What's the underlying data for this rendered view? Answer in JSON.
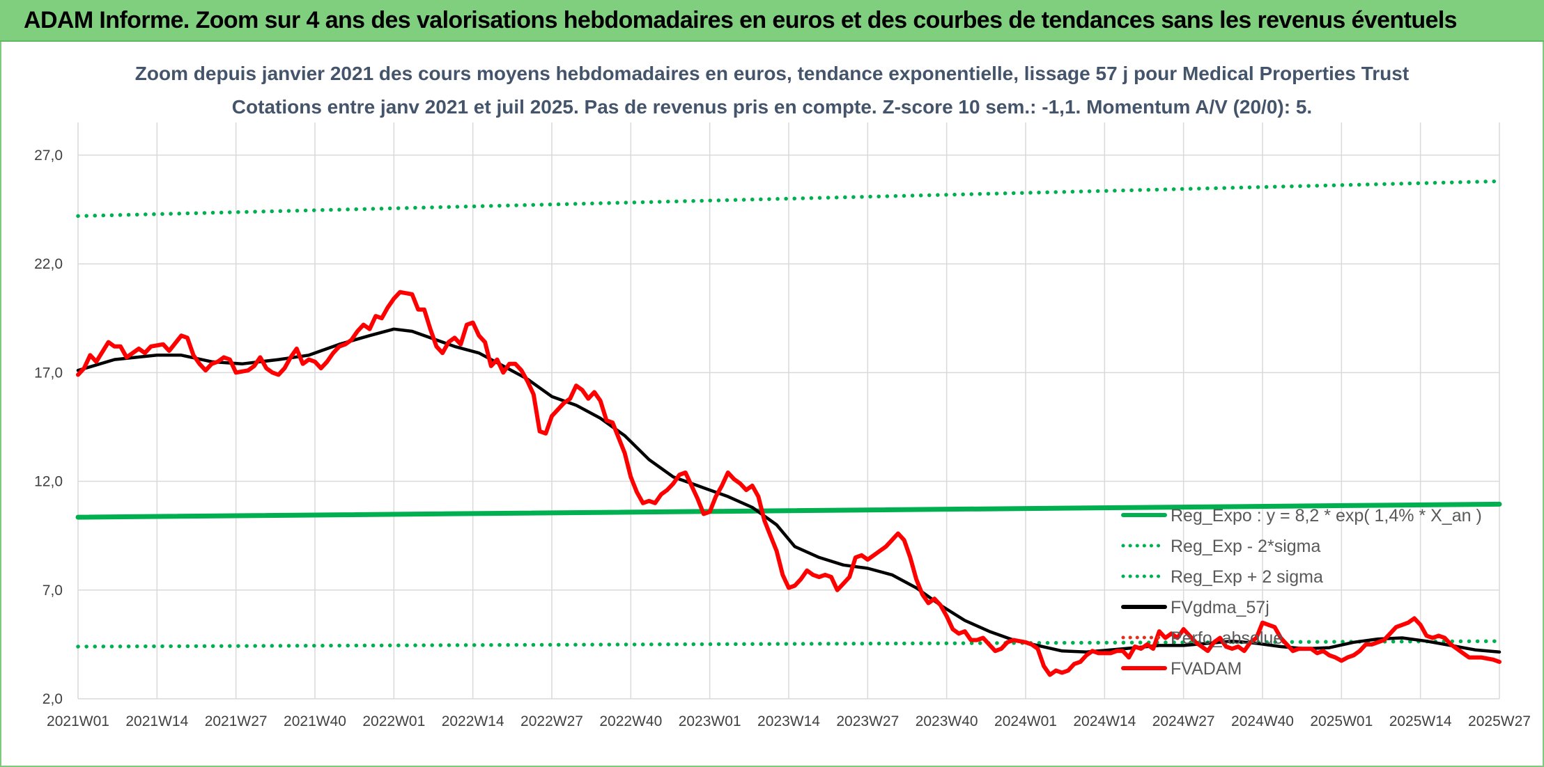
{
  "header": {
    "title": "ADAM Informe. Zoom sur 4 ans des valorisations hebdomadaires en euros et des courbes de tendances sans les revenus éventuels"
  },
  "chart_data": {
    "type": "line",
    "subtitle_line1": "Zoom depuis janvier 2021 des cours moyens hebdomadaires en euros, tendance exponentielle, lissage 57 j pour Medical Properties Trust",
    "subtitle_line2": "Cotations entre janv 2021 et juil 2025. Pas de revenus pris en compte. Z-score 10 sem.: -1,1. Momentum A/V (20/0): 5.",
    "x_tick_labels": [
      "2021W01",
      "2021W14",
      "2021W27",
      "2021W40",
      "2022W01",
      "2022W14",
      "2022W27",
      "2022W40",
      "2023W01",
      "2023W14",
      "2023W27",
      "2023W40",
      "2024W01",
      "2024W14",
      "2024W27",
      "2024W40",
      "2025W01",
      "2025W14",
      "2025W27"
    ],
    "x_range_weeks": [
      0,
      234
    ],
    "y_tick_labels": [
      "2,0",
      "7,0",
      "12,0",
      "17,0",
      "22,0",
      "27,0"
    ],
    "ylim": [
      2,
      28.5
    ],
    "grid": true,
    "legend_position": "right-bottom, inside plot",
    "series": [
      {
        "name": "Reg_Expo : y = 8,2 * exp( 1,4% *  X_an )",
        "color": "#00b050",
        "style": "solid-thick",
        "points": [
          [
            0,
            10.35
          ],
          [
            234,
            10.95
          ]
        ]
      },
      {
        "name": "Reg_Exp - 2*sigma",
        "color": "#00b050",
        "style": "dotted",
        "points": [
          [
            0,
            4.4
          ],
          [
            234,
            4.65
          ]
        ]
      },
      {
        "name": "Reg_Exp + 2 sigma",
        "color": "#00b050",
        "style": "dotted",
        "points": [
          [
            0,
            24.2
          ],
          [
            234,
            25.8
          ]
        ]
      },
      {
        "name": "FVgdma_57j",
        "color": "#000000",
        "style": "solid",
        "points": [
          [
            0,
            17.1
          ],
          [
            6,
            17.6
          ],
          [
            13,
            17.8
          ],
          [
            17,
            17.8
          ],
          [
            22,
            17.5
          ],
          [
            27,
            17.4
          ],
          [
            33,
            17.6
          ],
          [
            38,
            17.8
          ],
          [
            43,
            18.3
          ],
          [
            48,
            18.7
          ],
          [
            52,
            19.0
          ],
          [
            55,
            18.9
          ],
          [
            58,
            18.6
          ],
          [
            62,
            18.2
          ],
          [
            66,
            17.9
          ],
          [
            70,
            17.3
          ],
          [
            74,
            16.7
          ],
          [
            78,
            15.9
          ],
          [
            82,
            15.5
          ],
          [
            86,
            14.9
          ],
          [
            90,
            14.1
          ],
          [
            94,
            13.0
          ],
          [
            98,
            12.2
          ],
          [
            102,
            11.8
          ],
          [
            107,
            11.3
          ],
          [
            111,
            10.8
          ],
          [
            115,
            10.0
          ],
          [
            118,
            9.0
          ],
          [
            122,
            8.5
          ],
          [
            126,
            8.15
          ],
          [
            130,
            8.0
          ],
          [
            134,
            7.7
          ],
          [
            138,
            7.1
          ],
          [
            142,
            6.3
          ],
          [
            146,
            5.6
          ],
          [
            150,
            5.1
          ],
          [
            154,
            4.7
          ],
          [
            158,
            4.45
          ],
          [
            162,
            4.2
          ],
          [
            166,
            4.15
          ],
          [
            170,
            4.25
          ],
          [
            174,
            4.35
          ],
          [
            178,
            4.45
          ],
          [
            182,
            4.45
          ],
          [
            186,
            4.55
          ],
          [
            190,
            4.65
          ],
          [
            194,
            4.55
          ],
          [
            198,
            4.4
          ],
          [
            202,
            4.3
          ],
          [
            206,
            4.35
          ],
          [
            210,
            4.6
          ],
          [
            214,
            4.75
          ],
          [
            218,
            4.8
          ],
          [
            222,
            4.65
          ],
          [
            226,
            4.45
          ],
          [
            230,
            4.25
          ],
          [
            234,
            4.15
          ]
        ]
      },
      {
        "name": "Perfo_absolue",
        "color": "#e03020",
        "style": "dotted",
        "points": []
      },
      {
        "name": "FVADAM",
        "color": "#ff0000",
        "style": "solid-thick",
        "points": [
          [
            0,
            16.9
          ],
          [
            1,
            17.2
          ],
          [
            2,
            17.8
          ],
          [
            3,
            17.5
          ],
          [
            5,
            18.4
          ],
          [
            6,
            18.2
          ],
          [
            7,
            18.2
          ],
          [
            8,
            17.7
          ],
          [
            10,
            18.1
          ],
          [
            11,
            17.9
          ],
          [
            12,
            18.2
          ],
          [
            14,
            18.3
          ],
          [
            15,
            18.0
          ],
          [
            17,
            18.7
          ],
          [
            18,
            18.6
          ],
          [
            19,
            17.8
          ],
          [
            20,
            17.4
          ],
          [
            21,
            17.1
          ],
          [
            22,
            17.4
          ],
          [
            23,
            17.5
          ],
          [
            24,
            17.7
          ],
          [
            25,
            17.6
          ],
          [
            26,
            17.0
          ],
          [
            28,
            17.1
          ],
          [
            29,
            17.3
          ],
          [
            30,
            17.7
          ],
          [
            31,
            17.2
          ],
          [
            32,
            17.0
          ],
          [
            33,
            16.9
          ],
          [
            34,
            17.2
          ],
          [
            35,
            17.7
          ],
          [
            36,
            18.1
          ],
          [
            37,
            17.4
          ],
          [
            38,
            17.6
          ],
          [
            39,
            17.5
          ],
          [
            40,
            17.2
          ],
          [
            41,
            17.5
          ],
          [
            42,
            17.9
          ],
          [
            43,
            18.2
          ],
          [
            44,
            18.3
          ],
          [
            45,
            18.5
          ],
          [
            46,
            18.9
          ],
          [
            47,
            19.2
          ],
          [
            48,
            19.0
          ],
          [
            49,
            19.6
          ],
          [
            50,
            19.5
          ],
          [
            51,
            20.0
          ],
          [
            52,
            20.4
          ],
          [
            53,
            20.7
          ],
          [
            55,
            20.6
          ],
          [
            56,
            19.9
          ],
          [
            57,
            19.9
          ],
          [
            58,
            19.0
          ],
          [
            59,
            18.2
          ],
          [
            60,
            17.9
          ],
          [
            61,
            18.4
          ],
          [
            62,
            18.6
          ],
          [
            63,
            18.3
          ],
          [
            64,
            19.2
          ],
          [
            65,
            19.3
          ],
          [
            66,
            18.7
          ],
          [
            67,
            18.4
          ],
          [
            68,
            17.3
          ],
          [
            69,
            17.6
          ],
          [
            70,
            17.0
          ],
          [
            71,
            17.4
          ],
          [
            72,
            17.4
          ],
          [
            73,
            17.1
          ],
          [
            74,
            16.6
          ],
          [
            75,
            16.0
          ],
          [
            76,
            14.3
          ],
          [
            77,
            14.2
          ],
          [
            78,
            15.0
          ],
          [
            79,
            15.3
          ],
          [
            80,
            15.6
          ],
          [
            81,
            15.8
          ],
          [
            82,
            16.4
          ],
          [
            83,
            16.2
          ],
          [
            84,
            15.8
          ],
          [
            85,
            16.1
          ],
          [
            86,
            15.7
          ],
          [
            87,
            14.8
          ],
          [
            88,
            14.7
          ],
          [
            89,
            14.0
          ],
          [
            90,
            13.3
          ],
          [
            91,
            12.2
          ],
          [
            92,
            11.5
          ],
          [
            93,
            11.0
          ],
          [
            94,
            11.1
          ],
          [
            95,
            11.0
          ],
          [
            96,
            11.4
          ],
          [
            97,
            11.6
          ],
          [
            98,
            11.9
          ],
          [
            99,
            12.3
          ],
          [
            100,
            12.4
          ],
          [
            101,
            11.8
          ],
          [
            102,
            11.2
          ],
          [
            103,
            10.5
          ],
          [
            104,
            10.6
          ],
          [
            105,
            11.3
          ],
          [
            106,
            11.8
          ],
          [
            107,
            12.4
          ],
          [
            108,
            12.1
          ],
          [
            109,
            11.9
          ],
          [
            110,
            11.6
          ],
          [
            111,
            11.8
          ],
          [
            112,
            11.3
          ],
          [
            113,
            10.2
          ],
          [
            114,
            9.5
          ],
          [
            115,
            8.8
          ],
          [
            116,
            7.7
          ],
          [
            117,
            7.1
          ],
          [
            118,
            7.2
          ],
          [
            119,
            7.5
          ],
          [
            120,
            7.9
          ],
          [
            121,
            7.7
          ],
          [
            122,
            7.6
          ],
          [
            123,
            7.7
          ],
          [
            124,
            7.6
          ],
          [
            125,
            7.0
          ],
          [
            126,
            7.3
          ],
          [
            127,
            7.6
          ],
          [
            128,
            8.5
          ],
          [
            129,
            8.6
          ],
          [
            130,
            8.4
          ],
          [
            131,
            8.6
          ],
          [
            132,
            8.8
          ],
          [
            133,
            9.0
          ],
          [
            134,
            9.3
          ],
          [
            135,
            9.6
          ],
          [
            136,
            9.3
          ],
          [
            137,
            8.5
          ],
          [
            138,
            7.5
          ],
          [
            139,
            6.8
          ],
          [
            140,
            6.4
          ],
          [
            141,
            6.6
          ],
          [
            142,
            6.3
          ],
          [
            143,
            5.8
          ],
          [
            144,
            5.2
          ],
          [
            145,
            5.0
          ],
          [
            146,
            5.1
          ],
          [
            147,
            4.7
          ],
          [
            148,
            4.7
          ],
          [
            149,
            4.8
          ],
          [
            150,
            4.5
          ],
          [
            151,
            4.2
          ],
          [
            152,
            4.3
          ],
          [
            153,
            4.6
          ],
          [
            154,
            4.7
          ],
          [
            156,
            4.6
          ],
          [
            157,
            4.5
          ],
          [
            158,
            4.3
          ],
          [
            159,
            3.5
          ],
          [
            160,
            3.1
          ],
          [
            161,
            3.3
          ],
          [
            162,
            3.2
          ],
          [
            163,
            3.3
          ],
          [
            164,
            3.6
          ],
          [
            165,
            3.7
          ],
          [
            166,
            4.0
          ],
          [
            167,
            4.2
          ],
          [
            168,
            4.1
          ],
          [
            169,
            4.1
          ],
          [
            170,
            4.1
          ],
          [
            171,
            4.2
          ],
          [
            172,
            4.2
          ],
          [
            173,
            3.9
          ],
          [
            174,
            4.4
          ],
          [
            175,
            4.3
          ],
          [
            176,
            4.5
          ],
          [
            177,
            4.3
          ],
          [
            178,
            5.1
          ],
          [
            179,
            4.8
          ],
          [
            180,
            5.0
          ],
          [
            181,
            4.8
          ],
          [
            182,
            5.2
          ],
          [
            183,
            4.9
          ],
          [
            184,
            4.6
          ],
          [
            185,
            4.4
          ],
          [
            186,
            4.2
          ],
          [
            187,
            4.6
          ],
          [
            188,
            4.8
          ],
          [
            189,
            4.4
          ],
          [
            190,
            4.3
          ],
          [
            191,
            4.4
          ],
          [
            192,
            4.2
          ],
          [
            193,
            4.6
          ],
          [
            194,
            4.8
          ],
          [
            195,
            5.5
          ],
          [
            196,
            5.4
          ],
          [
            197,
            5.3
          ],
          [
            198,
            4.8
          ],
          [
            199,
            4.5
          ],
          [
            200,
            4.2
          ],
          [
            201,
            4.3
          ],
          [
            202,
            4.3
          ],
          [
            203,
            4.3
          ],
          [
            204,
            4.1
          ],
          [
            205,
            4.2
          ],
          [
            206,
            4.0
          ],
          [
            207,
            3.9
          ],
          [
            208,
            3.75
          ],
          [
            209,
            3.9
          ],
          [
            210,
            4.0
          ],
          [
            211,
            4.2
          ],
          [
            212,
            4.5
          ],
          [
            213,
            4.5
          ],
          [
            214,
            4.6
          ],
          [
            215,
            4.7
          ],
          [
            216,
            5.0
          ],
          [
            217,
            5.3
          ],
          [
            218,
            5.4
          ],
          [
            219,
            5.5
          ],
          [
            220,
            5.7
          ],
          [
            221,
            5.4
          ],
          [
            222,
            4.9
          ],
          [
            223,
            4.8
          ],
          [
            224,
            4.9
          ],
          [
            225,
            4.8
          ],
          [
            226,
            4.5
          ],
          [
            227,
            4.3
          ],
          [
            228,
            4.1
          ],
          [
            229,
            3.9
          ],
          [
            230,
            3.9
          ],
          [
            231,
            3.9
          ],
          [
            232,
            3.85
          ],
          [
            233,
            3.8
          ],
          [
            234,
            3.7
          ]
        ]
      }
    ]
  }
}
